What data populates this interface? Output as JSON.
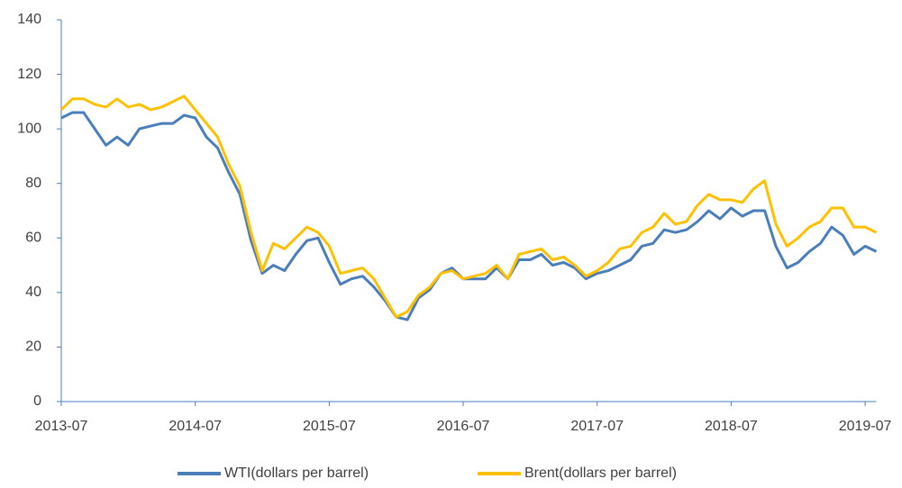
{
  "chart_data": {
    "type": "line",
    "x": [
      "2013-07",
      "2013-08",
      "2013-09",
      "2013-10",
      "2013-11",
      "2013-12",
      "2014-01",
      "2014-02",
      "2014-03",
      "2014-04",
      "2014-05",
      "2014-06",
      "2014-07",
      "2014-08",
      "2014-09",
      "2014-10",
      "2014-11",
      "2014-12",
      "2015-01",
      "2015-02",
      "2015-03",
      "2015-04",
      "2015-05",
      "2015-06",
      "2015-07",
      "2015-08",
      "2015-09",
      "2015-10",
      "2015-11",
      "2015-12",
      "2016-01",
      "2016-02",
      "2016-03",
      "2016-04",
      "2016-05",
      "2016-06",
      "2016-07",
      "2016-08",
      "2016-09",
      "2016-10",
      "2016-11",
      "2016-12",
      "2017-01",
      "2017-02",
      "2017-03",
      "2017-04",
      "2017-05",
      "2017-06",
      "2017-07",
      "2017-08",
      "2017-09",
      "2017-10",
      "2017-11",
      "2017-12",
      "2018-01",
      "2018-02",
      "2018-03",
      "2018-04",
      "2018-05",
      "2018-06",
      "2018-07",
      "2018-08",
      "2018-09",
      "2018-10",
      "2018-11",
      "2018-12",
      "2019-01",
      "2019-02",
      "2019-03",
      "2019-04",
      "2019-05",
      "2019-06",
      "2019-07",
      "2019-08"
    ],
    "series": [
      {
        "name": "WTI(dollars per barrel)",
        "color": "#4a7ebb",
        "values": [
          104,
          106,
          106,
          100,
          94,
          97,
          94,
          100,
          101,
          102,
          102,
          105,
          104,
          97,
          93,
          84,
          76,
          59,
          47,
          50,
          48,
          54,
          59,
          60,
          51,
          43,
          45,
          46,
          42,
          37,
          31,
          30,
          38,
          41,
          47,
          49,
          45,
          45,
          45,
          49,
          45,
          52,
          52,
          54,
          50,
          51,
          49,
          45,
          47,
          48,
          50,
          52,
          57,
          58,
          63,
          62,
          63,
          66,
          70,
          67,
          71,
          68,
          70,
          70,
          57,
          49,
          51,
          55,
          58,
          64,
          61,
          54,
          57,
          55
        ]
      },
      {
        "name": "Brent(dollars per barrel)",
        "color": "#ffc000",
        "values": [
          107,
          111,
          111,
          109,
          108,
          111,
          108,
          109,
          107,
          108,
          110,
          112,
          107,
          102,
          97,
          87,
          79,
          62,
          48,
          58,
          56,
          60,
          64,
          62,
          57,
          47,
          48,
          49,
          45,
          38,
          31,
          33,
          39,
          42,
          47,
          48,
          45,
          46,
          47,
          50,
          45,
          54,
          55,
          56,
          52,
          53,
          50,
          46,
          48,
          51,
          56,
          57,
          62,
          64,
          69,
          65,
          66,
          72,
          76,
          74,
          74,
          73,
          78,
          81,
          65,
          57,
          60,
          64,
          66,
          71,
          71,
          64,
          64,
          62
        ]
      }
    ],
    "xlim": [
      "2013-07",
      "2019-08"
    ],
    "xticks": [
      "2013-07",
      "2014-07",
      "2015-07",
      "2016-07",
      "2017-07",
      "2018-07",
      "2019-07"
    ],
    "ylim": [
      0,
      140
    ],
    "yticks": [
      0,
      20,
      40,
      60,
      80,
      100,
      120,
      140
    ],
    "legend": "bottom"
  }
}
